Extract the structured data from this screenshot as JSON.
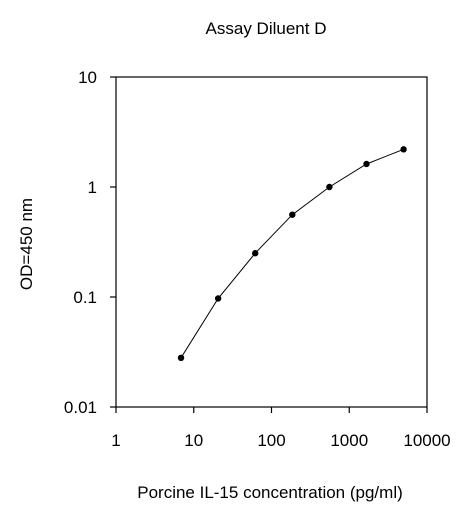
{
  "chart_data": {
    "type": "line",
    "title": "Assay Diluent D",
    "xlabel": "Porcine IL-15 concentration (pg/ml)",
    "ylabel": "OD=450 nm",
    "x_scale": "log",
    "y_scale": "log",
    "xlim": [
      1,
      10000
    ],
    "ylim": [
      0.01,
      10
    ],
    "x_ticks": [
      1,
      10,
      100,
      1000,
      10000
    ],
    "x_tick_labels": [
      "1",
      "10",
      "100",
      "1000",
      "10000"
    ],
    "y_ticks": [
      0.01,
      0.1,
      1,
      10
    ],
    "y_tick_labels": [
      "0.01",
      "0.1",
      "1",
      "10"
    ],
    "grid": false,
    "legend": "none",
    "series": [
      {
        "x": [
          6.86,
          20.58,
          61.73,
          185.19,
          555.56,
          1666.67,
          5000
        ],
        "y": [
          0.028,
          0.097,
          0.25,
          0.56,
          1.0,
          1.62,
          2.2
        ],
        "color": "#000000"
      }
    ]
  }
}
